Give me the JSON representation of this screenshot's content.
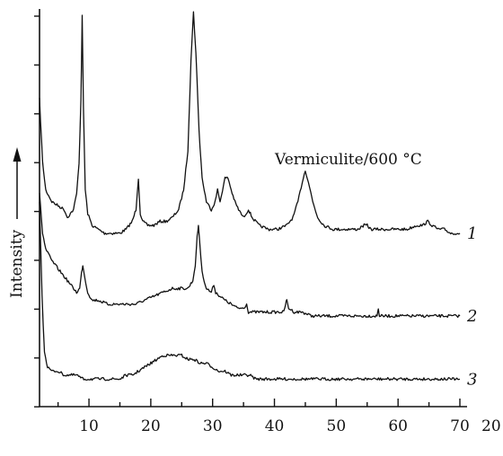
{
  "chart_data": {
    "type": "line",
    "title": "",
    "annotation": "Vermiculite/600 °C",
    "xlabel": "20",
    "ylabel": "Intensity",
    "xlim": [
      2,
      70
    ],
    "x_ticks": [
      10,
      20,
      30,
      40,
      50,
      60,
      70
    ],
    "grid": false,
    "legend": "none",
    "y_ticks_labeled": false,
    "series": [
      {
        "label": "1",
        "points": [
          [
            2,
            0.78
          ],
          [
            2.5,
            0.62
          ],
          [
            3,
            0.55
          ],
          [
            4,
            0.52
          ],
          [
            5,
            0.51
          ],
          [
            6,
            0.5
          ],
          [
            6.5,
            0.48
          ],
          [
            7,
            0.49
          ],
          [
            7.5,
            0.5
          ],
          [
            8,
            0.54
          ],
          [
            8.4,
            0.62
          ],
          [
            8.7,
            0.78
          ],
          [
            8.9,
            0.99
          ],
          [
            9.1,
            0.76
          ],
          [
            9.4,
            0.55
          ],
          [
            9.8,
            0.49
          ],
          [
            10.5,
            0.46
          ],
          [
            11.5,
            0.45
          ],
          [
            12.5,
            0.44
          ],
          [
            14,
            0.44
          ],
          [
            15,
            0.44
          ],
          [
            16,
            0.45
          ],
          [
            17,
            0.47
          ],
          [
            17.6,
            0.5
          ],
          [
            18,
            0.58
          ],
          [
            18.3,
            0.49
          ],
          [
            18.7,
            0.47
          ],
          [
            19.5,
            0.46
          ],
          [
            20.5,
            0.46
          ],
          [
            21.5,
            0.47
          ],
          [
            22.5,
            0.47
          ],
          [
            23.5,
            0.48
          ],
          [
            24.5,
            0.5
          ],
          [
            25.3,
            0.55
          ],
          [
            26,
            0.65
          ],
          [
            26.5,
            0.88
          ],
          [
            26.9,
            1.0
          ],
          [
            27.3,
            0.9
          ],
          [
            27.8,
            0.7
          ],
          [
            28.3,
            0.58
          ],
          [
            29,
            0.52
          ],
          [
            29.8,
            0.5
          ],
          [
            30.4,
            0.52
          ],
          [
            30.8,
            0.55
          ],
          [
            31.2,
            0.52
          ],
          [
            31.6,
            0.55
          ],
          [
            32,
            0.58
          ],
          [
            32.5,
            0.58
          ],
          [
            33,
            0.55
          ],
          [
            33.6,
            0.52
          ],
          [
            34.2,
            0.5
          ],
          [
            35,
            0.48
          ],
          [
            35.8,
            0.5
          ],
          [
            36.4,
            0.48
          ],
          [
            37.5,
            0.46
          ],
          [
            39,
            0.45
          ],
          [
            40.5,
            0.45
          ],
          [
            42,
            0.46
          ],
          [
            43,
            0.48
          ],
          [
            43.8,
            0.52
          ],
          [
            44.5,
            0.57
          ],
          [
            45,
            0.6
          ],
          [
            45.5,
            0.57
          ],
          [
            46.2,
            0.52
          ],
          [
            47,
            0.48
          ],
          [
            48,
            0.46
          ],
          [
            49.5,
            0.45
          ],
          [
            51,
            0.45
          ],
          [
            52.5,
            0.45
          ],
          [
            53.5,
            0.45
          ],
          [
            54.5,
            0.46
          ],
          [
            55,
            0.46
          ],
          [
            55.6,
            0.45
          ],
          [
            57,
            0.45
          ],
          [
            58.5,
            0.45
          ],
          [
            60,
            0.45
          ],
          [
            61.5,
            0.45
          ],
          [
            63,
            0.46
          ],
          [
            64,
            0.46
          ],
          [
            64.8,
            0.47
          ],
          [
            65.5,
            0.46
          ],
          [
            66.5,
            0.45
          ],
          [
            67.5,
            0.45
          ],
          [
            68.5,
            0.44
          ],
          [
            69.5,
            0.44
          ],
          [
            70,
            0.44
          ]
        ]
      },
      {
        "label": "2",
        "points": [
          [
            2,
            0.54
          ],
          [
            2.5,
            0.44
          ],
          [
            3,
            0.4
          ],
          [
            4,
            0.37
          ],
          [
            5,
            0.35
          ],
          [
            6,
            0.33
          ],
          [
            7,
            0.31
          ],
          [
            8,
            0.29
          ],
          [
            8.5,
            0.3
          ],
          [
            8.8,
            0.34
          ],
          [
            9,
            0.36
          ],
          [
            9.3,
            0.33
          ],
          [
            9.8,
            0.29
          ],
          [
            10.5,
            0.27
          ],
          [
            11.5,
            0.27
          ],
          [
            13,
            0.26
          ],
          [
            14.5,
            0.26
          ],
          [
            16,
            0.26
          ],
          [
            17.5,
            0.26
          ],
          [
            19,
            0.27
          ],
          [
            20.5,
            0.28
          ],
          [
            22,
            0.29
          ],
          [
            23.5,
            0.3
          ],
          [
            25,
            0.3
          ],
          [
            26,
            0.3
          ],
          [
            26.8,
            0.32
          ],
          [
            27.2,
            0.36
          ],
          [
            27.5,
            0.43
          ],
          [
            27.7,
            0.46
          ],
          [
            27.9,
            0.42
          ],
          [
            28.3,
            0.34
          ],
          [
            29,
            0.3
          ],
          [
            29.8,
            0.29
          ],
          [
            30.2,
            0.31
          ],
          [
            30.5,
            0.29
          ],
          [
            31.2,
            0.28
          ],
          [
            32,
            0.27
          ],
          [
            33,
            0.26
          ],
          [
            34,
            0.25
          ],
          [
            35,
            0.25
          ],
          [
            35.5,
            0.26
          ],
          [
            35.8,
            0.24
          ],
          [
            37,
            0.24
          ],
          [
            38.5,
            0.24
          ],
          [
            40,
            0.24
          ],
          [
            41.5,
            0.24
          ],
          [
            41.8,
            0.26
          ],
          [
            42,
            0.27
          ],
          [
            42.3,
            0.25
          ],
          [
            43.2,
            0.24
          ],
          [
            44.5,
            0.24
          ],
          [
            46,
            0.23
          ],
          [
            48,
            0.23
          ],
          [
            50,
            0.23
          ],
          [
            52,
            0.23
          ],
          [
            54,
            0.23
          ],
          [
            56,
            0.23
          ],
          [
            56.6,
            0.23
          ],
          [
            56.8,
            0.25
          ],
          [
            57,
            0.23
          ],
          [
            58.5,
            0.23
          ],
          [
            60,
            0.23
          ],
          [
            62,
            0.23
          ],
          [
            64,
            0.23
          ],
          [
            66,
            0.23
          ],
          [
            68,
            0.23
          ],
          [
            70,
            0.23
          ]
        ]
      },
      {
        "label": "3",
        "points": [
          [
            2,
            0.52
          ],
          [
            2.4,
            0.28
          ],
          [
            2.8,
            0.14
          ],
          [
            3.3,
            0.1
          ],
          [
            4,
            0.09
          ],
          [
            5,
            0.09
          ],
          [
            6,
            0.08
          ],
          [
            7,
            0.08
          ],
          [
            8,
            0.08
          ],
          [
            9,
            0.07
          ],
          [
            10,
            0.07
          ],
          [
            11,
            0.07
          ],
          [
            12,
            0.07
          ],
          [
            13,
            0.07
          ],
          [
            14,
            0.07
          ],
          [
            15,
            0.07
          ],
          [
            16,
            0.08
          ],
          [
            17,
            0.08
          ],
          [
            18,
            0.09
          ],
          [
            19,
            0.1
          ],
          [
            20,
            0.11
          ],
          [
            21,
            0.12
          ],
          [
            22,
            0.13
          ],
          [
            23,
            0.13
          ],
          [
            24,
            0.13
          ],
          [
            25,
            0.13
          ],
          [
            26,
            0.12
          ],
          [
            27,
            0.12
          ],
          [
            28,
            0.11
          ],
          [
            29,
            0.11
          ],
          [
            30,
            0.1
          ],
          [
            31,
            0.09
          ],
          [
            32,
            0.09
          ],
          [
            33,
            0.08
          ],
          [
            34,
            0.08
          ],
          [
            35,
            0.08
          ],
          [
            36,
            0.08
          ],
          [
            37,
            0.07
          ],
          [
            38,
            0.07
          ],
          [
            40,
            0.07
          ],
          [
            42,
            0.07
          ],
          [
            44,
            0.07
          ],
          [
            46,
            0.07
          ],
          [
            48,
            0.07
          ],
          [
            50,
            0.07
          ],
          [
            52,
            0.07
          ],
          [
            54,
            0.07
          ],
          [
            56,
            0.07
          ],
          [
            58,
            0.07
          ],
          [
            60,
            0.07
          ],
          [
            62,
            0.07
          ],
          [
            64,
            0.07
          ],
          [
            66,
            0.07
          ],
          [
            68,
            0.07
          ],
          [
            70,
            0.07
          ]
        ]
      }
    ]
  }
}
